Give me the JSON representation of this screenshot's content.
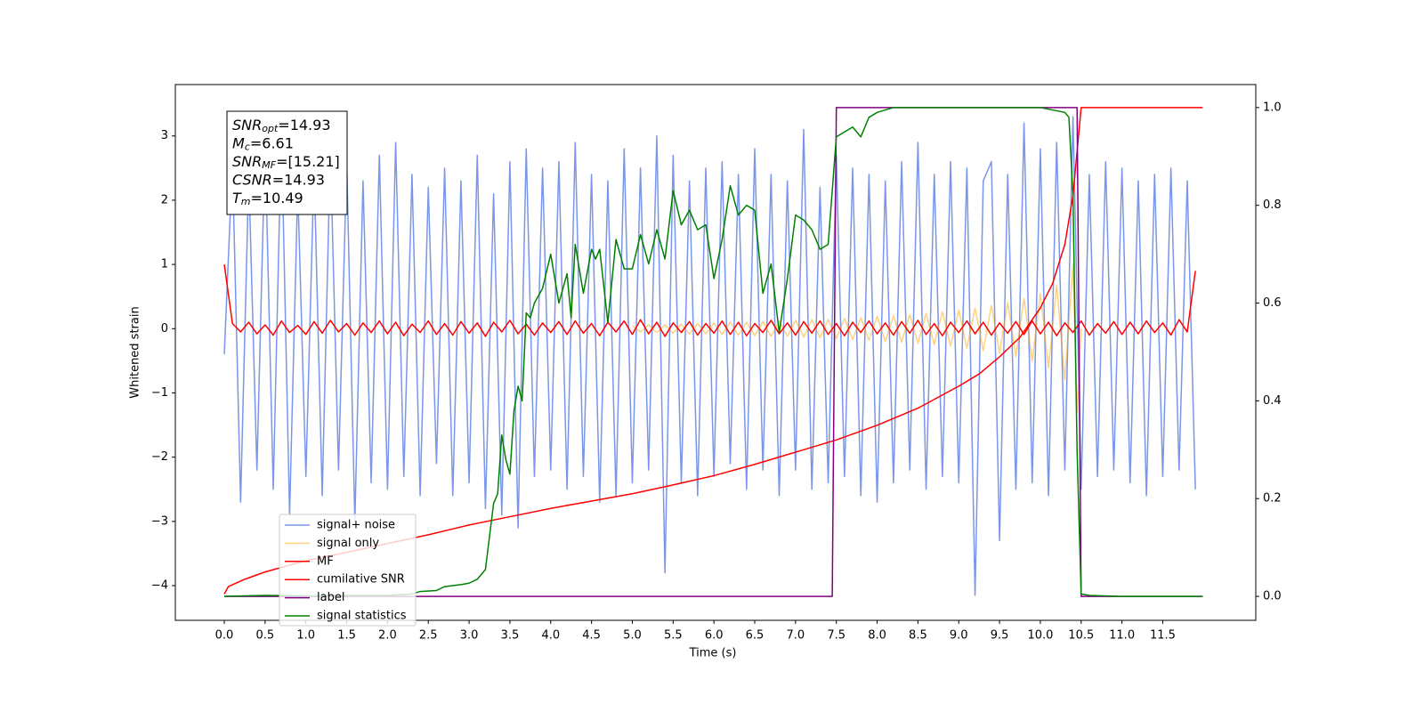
{
  "chart_data": {
    "type": "line",
    "xlabel": "Time (s)",
    "ylabel": "Whitened strain",
    "xlim": [
      -0.6,
      12.64
    ],
    "ylim": [
      -4.54,
      3.8
    ],
    "y2lim": [
      -0.049,
      1.047
    ],
    "xticks": [
      {
        "value": 0,
        "label": "0.0"
      },
      0.5,
      {
        "value": 1,
        "label": "1.0"
      },
      1.5,
      {
        "value": 2,
        "label": "2.0"
      },
      2.5,
      {
        "value": 3,
        "label": "3.0"
      },
      3.5,
      {
        "value": 4,
        "label": "4.0"
      },
      4.5,
      {
        "value": 5,
        "label": "5.0"
      },
      5.5,
      {
        "value": 6,
        "label": "6.0"
      },
      6.5,
      {
        "value": 7,
        "label": "7.0"
      },
      7.5,
      {
        "value": 8,
        "label": "8.0"
      },
      8.5,
      {
        "value": 9,
        "label": "9.0"
      },
      9.5,
      {
        "value": 10,
        "label": "10.0"
      },
      10.5,
      {
        "value": 11,
        "label": "11.0"
      },
      11.5
    ],
    "yticks": [
      {
        "value": -4,
        "label": "−4"
      },
      {
        "value": -3,
        "label": "−3"
      },
      {
        "value": -2,
        "label": "−2"
      },
      {
        "value": -1,
        "label": "−1"
      },
      0,
      1,
      2,
      3
    ],
    "y2ticks": [
      {
        "value": 0,
        "label": "0.0"
      },
      0.2,
      0.4,
      0.6,
      0.8,
      {
        "value": 1,
        "label": "1.0"
      }
    ],
    "legend": "lower left",
    "annotation": [
      {
        "symbol": "SNR",
        "subscript": "opt",
        "text": "=14.93"
      },
      {
        "symbol": "M",
        "subscript": "c",
        "text": "=6.61"
      },
      {
        "symbol": "SNR",
        "subscript": "MF",
        "text": "=[15.21]"
      },
      {
        "symbol": "CSNR",
        "text": "=14.93"
      },
      {
        "symbol": "T",
        "subscript": "m",
        "text": "=10.49"
      }
    ],
    "x": [
      0,
      0.1,
      0.2,
      0.3,
      0.4,
      0.5,
      0.6,
      0.7,
      0.8,
      0.9,
      1,
      1.1,
      1.2,
      1.3,
      1.4,
      1.5,
      1.6,
      1.7,
      1.8,
      1.9,
      2,
      2.1,
      2.2,
      2.3,
      2.4,
      2.5,
      2.6,
      2.7,
      2.8,
      2.9,
      3,
      3.1,
      3.2,
      3.3,
      3.4,
      3.5,
      3.6,
      3.7,
      3.8,
      3.9,
      4,
      4.1,
      4.2,
      4.3,
      4.4,
      4.5,
      4.6,
      4.7,
      4.8,
      4.9,
      5,
      5.1,
      5.2,
      5.3,
      5.4,
      5.5,
      5.6,
      5.7,
      5.8,
      5.9,
      6,
      6.1,
      6.2,
      6.3,
      6.4,
      6.5,
      6.6,
      6.7,
      6.8,
      6.9,
      7,
      7.1,
      7.2,
      7.3,
      7.4,
      7.5,
      7.6,
      7.7,
      7.8,
      7.9,
      8,
      8.1,
      8.2,
      8.3,
      8.4,
      8.5,
      8.6,
      8.7,
      8.8,
      8.9,
      9,
      9.1,
      9.2,
      9.3,
      9.4,
      9.5,
      9.6,
      9.7,
      9.8,
      9.9,
      10,
      10.1,
      10.2,
      10.3,
      10.4,
      10.5,
      10.6,
      10.7,
      10.8,
      10.9,
      11,
      11.1,
      11.2,
      11.3,
      11.4,
      11.5,
      11.6,
      11.7,
      11.8,
      11.9
    ],
    "series": [
      {
        "name": "signal+ noise",
        "color": "#4169e1",
        "alpha": 0.7,
        "values": [
          -0.4,
          2.6,
          -2.7,
          2.4,
          -2.2,
          2.9,
          -2.5,
          3.1,
          -2.9,
          2.2,
          -2.3,
          2.5,
          -2.6,
          2.8,
          -2.2,
          2.6,
          -3.0,
          2.3,
          -2.4,
          2.7,
          -2.5,
          2.9,
          -2.3,
          2.4,
          -2.6,
          2.2,
          -2.1,
          2.5,
          -2.6,
          2.3,
          -2.4,
          2.7,
          -2.8,
          2.1,
          -2.9,
          2.6,
          -3.1,
          2.8,
          -2.3,
          2.5,
          -2.2,
          2.6,
          -2.5,
          2.9,
          -2.3,
          2.4,
          -2.7,
          2.3,
          -2.6,
          2.8,
          -2.4,
          2.5,
          -2.2,
          3.0,
          -3.8,
          2.7,
          -2.4,
          2.3,
          -2.6,
          2.5,
          -2.3,
          2.6,
          -2.1,
          2.4,
          -2.5,
          2.8,
          -2.2,
          2.4,
          -2.6,
          2.3,
          -2.2,
          3.1,
          -2.5,
          2.2,
          -2.4,
          2.7,
          -2.3,
          2.5,
          -2.6,
          2.4,
          -2.7,
          2.3,
          -2.4,
          2.6,
          -2.2,
          2.9,
          -2.5,
          2.4,
          -2.3,
          2.6,
          -2.4,
          2.5,
          -4.15,
          2.3,
          2.6,
          -3.3,
          2.4,
          -2.5,
          3.2,
          -2.4,
          2.8,
          -2.6,
          2.9,
          -2.2,
          3.3,
          -2.5,
          2.4,
          -2.3,
          2.6,
          -2.2,
          2.5,
          -2.4,
          2.3,
          -2.6,
          2.4,
          -2.3,
          2.5,
          -2.2,
          2.3,
          -2.5
        ]
      },
      {
        "name": "signal only",
        "color": "#ffa500",
        "alpha": 0.5,
        "x": [
          5,
          5.1,
          5.2,
          5.3,
          5.4,
          5.5,
          5.6,
          5.7,
          5.8,
          5.9,
          6,
          6.1,
          6.2,
          6.3,
          6.4,
          6.5,
          6.6,
          6.7,
          6.8,
          6.9,
          7,
          7.1,
          7.2,
          7.3,
          7.4,
          7.5,
          7.6,
          7.7,
          7.8,
          7.9,
          8,
          8.1,
          8.2,
          8.3,
          8.4,
          8.5,
          8.6,
          8.7,
          8.8,
          8.9,
          9,
          9.1,
          9.2,
          9.3,
          9.4,
          9.5,
          9.6,
          9.7,
          9.8,
          9.9,
          10,
          10.1,
          10.2,
          10.3,
          10.4,
          10.45,
          10.5
        ],
        "values": [
          0.05,
          -0.05,
          0.06,
          -0.06,
          0.06,
          -0.07,
          0.07,
          -0.08,
          0.08,
          -0.08,
          0.09,
          -0.09,
          0.1,
          -0.1,
          0.1,
          -0.11,
          0.11,
          -0.12,
          0.12,
          -0.12,
          0.13,
          -0.13,
          0.14,
          -0.14,
          0.14,
          -0.15,
          0.16,
          -0.17,
          0.17,
          -0.18,
          0.19,
          -0.2,
          0.2,
          -0.21,
          0.22,
          -0.23,
          0.24,
          -0.25,
          0.26,
          -0.27,
          0.29,
          -0.3,
          0.32,
          -0.34,
          0.36,
          -0.38,
          0.41,
          -0.44,
          0.47,
          -0.51,
          0.55,
          -0.61,
          0.68,
          -0.8,
          1.0,
          -1.3,
          0
        ]
      },
      {
        "name": "MF",
        "color": "#ff0000",
        "alpha": 1,
        "values": [
          1.0,
          0.08,
          -0.05,
          0.1,
          -0.08,
          0.06,
          -0.1,
          0.12,
          -0.06,
          0.05,
          -0.09,
          0.11,
          -0.07,
          0.13,
          -0.05,
          0.08,
          -0.1,
          0.09,
          -0.06,
          0.12,
          -0.08,
          0.1,
          -0.11,
          0.07,
          -0.06,
          0.12,
          -0.09,
          0.08,
          -0.1,
          0.11,
          -0.07,
          0.09,
          -0.12,
          0.1,
          -0.05,
          0.13,
          -0.08,
          0.07,
          -0.1,
          0.09,
          -0.06,
          0.11,
          -0.09,
          0.12,
          -0.07,
          0.08,
          -0.11,
          0.1,
          -0.05,
          0.12,
          -0.09,
          0.14,
          -0.08,
          0.1,
          -0.12,
          0.09,
          -0.06,
          0.11,
          -0.1,
          0.08,
          -0.07,
          0.12,
          -0.09,
          0.1,
          -0.11,
          0.08,
          -0.06,
          0.13,
          -0.08,
          0.09,
          -0.1,
          0.11,
          -0.07,
          0.12,
          -0.09,
          0.08,
          -0.11,
          0.1,
          -0.06,
          0.12,
          -0.08,
          0.09,
          -0.1,
          0.11,
          -0.07,
          0.13,
          -0.09,
          0.08,
          -0.11,
          0.1,
          -0.06,
          0.12,
          -0.08,
          0.1,
          -0.1,
          0.09,
          -0.07,
          0.11,
          -0.09,
          0.12,
          -0.08,
          0.1,
          -0.11,
          0.09,
          -0.06,
          0.12,
          -0.1,
          0.08,
          -0.07,
          0.11,
          -0.09,
          0.1,
          -0.08,
          0.12,
          -0.06,
          0.09,
          -0.1,
          0.14,
          -0.05,
          0.9
        ]
      },
      {
        "name": "cumilative SNR",
        "color": "#ff0000",
        "alpha": 1,
        "axis": "y2",
        "x": [
          0,
          0.05,
          0.25,
          0.5,
          1,
          1.5,
          2,
          2.5,
          3,
          3.5,
          4,
          4.5,
          5,
          5.5,
          6,
          6.5,
          7,
          7.5,
          8,
          8.5,
          9,
          9.25,
          9.5,
          9.75,
          10,
          10.15,
          10.3,
          10.4,
          10.5,
          11,
          11.99
        ],
        "values": [
          0.005,
          0.02,
          0.035,
          0.05,
          0.073,
          0.09,
          0.108,
          0.126,
          0.146,
          0.163,
          0.18,
          0.195,
          0.21,
          0.228,
          0.247,
          0.27,
          0.295,
          0.32,
          0.35,
          0.385,
          0.43,
          0.455,
          0.49,
          0.53,
          0.59,
          0.64,
          0.72,
          0.82,
          1.0,
          1.0,
          1.0
        ]
      },
      {
        "name": "label",
        "color": "#800080",
        "alpha": 1,
        "axis": "y2",
        "x": [
          0,
          7.45,
          7.5,
          10.45,
          10.5,
          11.99
        ],
        "values": [
          0,
          0,
          1,
          1,
          0,
          0
        ]
      },
      {
        "name": "signal statistics",
        "color": "#008000",
        "alpha": 1,
        "axis": "y2",
        "x": [
          0,
          0.5,
          1,
          1.5,
          2,
          2.3,
          2.4,
          2.6,
          2.7,
          2.8,
          2.9,
          3,
          3.1,
          3.2,
          3.3,
          3.35,
          3.4,
          3.45,
          3.5,
          3.55,
          3.6,
          3.65,
          3.7,
          3.75,
          3.8,
          3.9,
          4,
          4.1,
          4.2,
          4.25,
          4.3,
          4.4,
          4.5,
          4.55,
          4.6,
          4.7,
          4.8,
          4.9,
          5,
          5.1,
          5.2,
          5.3,
          5.4,
          5.5,
          5.6,
          5.7,
          5.8,
          5.9,
          6,
          6.1,
          6.2,
          6.3,
          6.4,
          6.5,
          6.6,
          6.7,
          6.8,
          6.9,
          7,
          7.1,
          7.2,
          7.3,
          7.4,
          7.5,
          7.6,
          7.7,
          7.8,
          7.9,
          8,
          8.2,
          8.6,
          9,
          9.5,
          10,
          10.3,
          10.35,
          10.4,
          10.45,
          10.5,
          10.6,
          11,
          11.99
        ],
        "values": [
          0,
          0.002,
          0.001,
          0.002,
          0.002,
          0.005,
          0.01,
          0.012,
          0.02,
          0.022,
          0.024,
          0.027,
          0.035,
          0.055,
          0.19,
          0.21,
          0.33,
          0.28,
          0.25,
          0.38,
          0.43,
          0.4,
          0.58,
          0.57,
          0.6,
          0.63,
          0.7,
          0.6,
          0.66,
          0.57,
          0.72,
          0.62,
          0.71,
          0.69,
          0.71,
          0.56,
          0.73,
          0.67,
          0.67,
          0.74,
          0.68,
          0.75,
          0.69,
          0.83,
          0.76,
          0.79,
          0.75,
          0.76,
          0.65,
          0.73,
          0.84,
          0.78,
          0.8,
          0.79,
          0.62,
          0.68,
          0.54,
          0.65,
          0.78,
          0.77,
          0.75,
          0.71,
          0.72,
          0.94,
          0.95,
          0.96,
          0.94,
          0.98,
          0.99,
          1.0,
          1.0,
          1.0,
          1.0,
          1.0,
          0.99,
          0.98,
          0.82,
          0.3,
          0.005,
          0.002,
          0,
          0
        ]
      }
    ]
  }
}
